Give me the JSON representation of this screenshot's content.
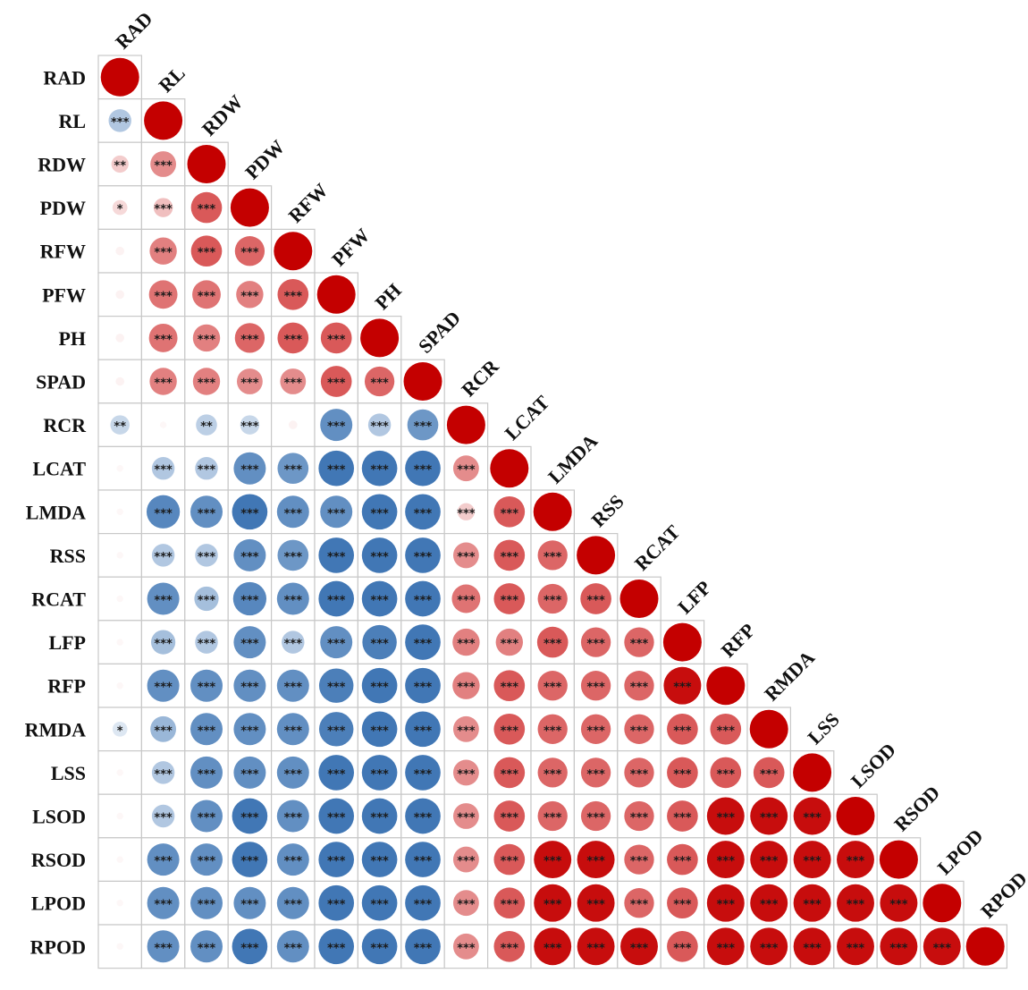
{
  "chart_data": {
    "type": "correlation-matrix",
    "shape": "circle",
    "layout": "lower-triangle",
    "variables": [
      "RAD",
      "RL",
      "RDW",
      "PDW",
      "RFW",
      "PFW",
      "PH",
      "SPAD",
      "RCR",
      "LCAT",
      "LMDA",
      "RSS",
      "RCAT",
      "LFP",
      "RFP",
      "RMDA",
      "LSS",
      "LSOD",
      "RSOD",
      "LPOD",
      "RPOD"
    ],
    "value_range": [
      -1,
      1
    ],
    "color_scale": {
      "negative": "#1f5fa8",
      "zero": "#ffffff",
      "positive": "#c40000"
    },
    "correlations": [
      [
        1.0
      ],
      [
        -0.35,
        1.0
      ],
      [
        0.2,
        0.45,
        1.0
      ],
      [
        0.15,
        0.25,
        0.65,
        1.0
      ],
      [
        0.05,
        0.5,
        0.65,
        0.6,
        1.0
      ],
      [
        0.05,
        0.55,
        0.55,
        0.5,
        0.65,
        1.0
      ],
      [
        0.05,
        0.55,
        0.5,
        0.6,
        0.65,
        0.65,
        1.0
      ],
      [
        0.05,
        0.5,
        0.5,
        0.45,
        0.45,
        0.65,
        0.6,
        1.0
      ],
      [
        -0.25,
        0.03,
        -0.3,
        -0.25,
        0.05,
        -0.7,
        -0.35,
        -0.65,
        1.0
      ],
      [
        0.03,
        -0.35,
        -0.35,
        -0.7,
        -0.65,
        -0.85,
        -0.85,
        -0.85,
        0.45,
        1.0
      ],
      [
        0.03,
        -0.75,
        -0.7,
        -0.85,
        -0.7,
        -0.7,
        -0.85,
        -0.85,
        0.2,
        0.65,
        1.0
      ],
      [
        0.03,
        -0.35,
        -0.35,
        -0.7,
        -0.65,
        -0.85,
        -0.85,
        -0.85,
        0.45,
        0.65,
        0.6,
        1.0
      ],
      [
        0.03,
        -0.7,
        -0.4,
        -0.75,
        -0.7,
        -0.85,
        -0.85,
        -0.85,
        0.55,
        0.65,
        0.6,
        0.65,
        1.0
      ],
      [
        0.03,
        -0.4,
        -0.35,
        -0.7,
        -0.35,
        -0.7,
        -0.8,
        -0.85,
        0.5,
        0.5,
        0.65,
        0.6,
        0.6,
        1.0
      ],
      [
        0.03,
        -0.7,
        -0.7,
        -0.7,
        -0.7,
        -0.8,
        -0.85,
        -0.85,
        0.5,
        0.65,
        0.6,
        0.6,
        0.6,
        0.95,
        1.0
      ],
      [
        -0.15,
        -0.45,
        -0.7,
        -0.7,
        -0.7,
        -0.8,
        -0.85,
        -0.85,
        0.45,
        0.65,
        0.6,
        0.6,
        0.6,
        0.65,
        0.65,
        1.0
      ],
      [
        0.03,
        -0.35,
        -0.7,
        -0.7,
        -0.7,
        -0.85,
        -0.85,
        -0.85,
        0.45,
        0.65,
        0.6,
        0.6,
        0.6,
        0.65,
        0.65,
        0.65,
        1.0
      ],
      [
        0.03,
        -0.35,
        -0.7,
        -0.85,
        -0.7,
        -0.85,
        -0.85,
        -0.85,
        0.45,
        0.65,
        0.6,
        0.6,
        0.6,
        0.65,
        0.95,
        0.95,
        0.95,
        1.0
      ],
      [
        0.03,
        -0.7,
        -0.7,
        -0.85,
        -0.7,
        -0.85,
        -0.85,
        -0.85,
        0.45,
        0.65,
        0.95,
        0.95,
        0.6,
        0.65,
        0.95,
        0.95,
        0.95,
        0.95,
        1.0
      ],
      [
        0.03,
        -0.7,
        -0.7,
        -0.7,
        -0.7,
        -0.85,
        -0.85,
        -0.85,
        0.45,
        0.65,
        0.95,
        0.95,
        0.6,
        0.65,
        0.95,
        0.95,
        0.95,
        0.95,
        0.95,
        1.0
      ],
      [
        0.03,
        -0.7,
        -0.7,
        -0.85,
        -0.7,
        -0.85,
        -0.85,
        -0.85,
        0.45,
        0.65,
        0.95,
        0.95,
        0.95,
        0.65,
        0.95,
        0.95,
        0.95,
        0.95,
        0.95,
        0.95,
        1.0
      ]
    ],
    "significance": [
      [
        ""
      ],
      [
        "***",
        ""
      ],
      [
        "**",
        "***",
        ""
      ],
      [
        "*",
        "***",
        "***",
        ""
      ],
      [
        "",
        "***",
        "***",
        "***",
        ""
      ],
      [
        "",
        "***",
        "***",
        "***",
        "***",
        ""
      ],
      [
        "",
        "***",
        "***",
        "***",
        "***",
        "***",
        ""
      ],
      [
        "",
        "***",
        "***",
        "***",
        "***",
        "***",
        "***",
        ""
      ],
      [
        "**",
        "",
        "**",
        "***",
        "",
        "***",
        "***",
        "***",
        ""
      ],
      [
        "",
        "***",
        "***",
        "***",
        "***",
        "***",
        "***",
        "***",
        "***",
        ""
      ],
      [
        "",
        "***",
        "***",
        "***",
        "***",
        "***",
        "***",
        "***",
        "***",
        "***",
        ""
      ],
      [
        "",
        "***",
        "***",
        "***",
        "***",
        "***",
        "***",
        "***",
        "***",
        "***",
        "***",
        ""
      ],
      [
        "",
        "***",
        "***",
        "***",
        "***",
        "***",
        "***",
        "***",
        "***",
        "***",
        "***",
        "***",
        ""
      ],
      [
        "",
        "***",
        "***",
        "***",
        "***",
        "***",
        "***",
        "***",
        "***",
        "***",
        "***",
        "***",
        "***",
        ""
      ],
      [
        "",
        "***",
        "***",
        "***",
        "***",
        "***",
        "***",
        "***",
        "***",
        "***",
        "***",
        "***",
        "***",
        "***",
        ""
      ],
      [
        "*",
        "***",
        "***",
        "***",
        "***",
        "***",
        "***",
        "***",
        "***",
        "***",
        "***",
        "***",
        "***",
        "***",
        "***",
        ""
      ],
      [
        "",
        "***",
        "***",
        "***",
        "***",
        "***",
        "***",
        "***",
        "***",
        "***",
        "***",
        "***",
        "***",
        "***",
        "***",
        "***",
        ""
      ],
      [
        "",
        "***",
        "***",
        "***",
        "***",
        "***",
        "***",
        "***",
        "***",
        "***",
        "***",
        "***",
        "***",
        "***",
        "***",
        "***",
        "***",
        ""
      ],
      [
        "",
        "***",
        "***",
        "***",
        "***",
        "***",
        "***",
        "***",
        "***",
        "***",
        "***",
        "***",
        "***",
        "***",
        "***",
        "***",
        "***",
        "***",
        ""
      ],
      [
        "",
        "***",
        "***",
        "***",
        "***",
        "***",
        "***",
        "***",
        "***",
        "***",
        "***",
        "***",
        "***",
        "***",
        "***",
        "***",
        "***",
        "***",
        "***",
        ""
      ],
      [
        "",
        "***",
        "***",
        "***",
        "***",
        "***",
        "***",
        "***",
        "***",
        "***",
        "***",
        "***",
        "***",
        "***",
        "***",
        "***",
        "***",
        "***",
        "***",
        "***",
        ""
      ]
    ]
  }
}
